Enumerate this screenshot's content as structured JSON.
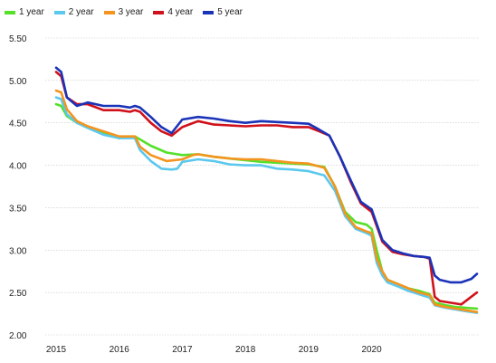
{
  "chart_data": {
    "type": "line",
    "title": "",
    "xlabel": "",
    "ylabel": "",
    "ylim": [
      2.0,
      5.5
    ],
    "yticks": [
      "2.00",
      "2.50",
      "3.00",
      "3.50",
      "4.00",
      "4.50",
      "5.00",
      "5.50"
    ],
    "xticks": [
      "2015",
      "2016",
      "2017",
      "2018",
      "2019",
      "2020"
    ],
    "grid": "horizontal",
    "legend_position": "top-left",
    "x_unit": "decimal year",
    "series": [
      {
        "name": "1 year",
        "color": "#55e02a",
        "x": [
          2015.0,
          2015.08,
          2015.17,
          2015.33,
          2015.5,
          2015.75,
          2016.0,
          2016.25,
          2016.5,
          2016.75,
          2017.0,
          2017.25,
          2017.5,
          2017.75,
          2018.0,
          2018.25,
          2018.5,
          2018.75,
          2019.0,
          2019.25,
          2019.42,
          2019.58,
          2019.75,
          2019.92,
          2020.0,
          2020.08,
          2020.17,
          2020.25,
          2020.42,
          2020.58,
          2020.75,
          2020.92,
          2021.0,
          2021.17,
          2021.33,
          2021.5,
          2021.67
        ],
        "values": [
          4.72,
          4.7,
          4.58,
          4.5,
          4.46,
          4.38,
          4.32,
          4.34,
          4.23,
          4.15,
          4.12,
          4.13,
          4.1,
          4.08,
          4.06,
          4.04,
          4.03,
          4.02,
          4.01,
          3.98,
          3.75,
          3.45,
          3.33,
          3.3,
          3.25,
          3.0,
          2.75,
          2.65,
          2.6,
          2.55,
          2.52,
          2.48,
          2.38,
          2.35,
          2.33,
          2.32,
          2.31
        ]
      },
      {
        "name": "2 year",
        "color": "#5bc8ee",
        "x": [
          2015.0,
          2015.08,
          2015.17,
          2015.33,
          2015.5,
          2015.75,
          2016.0,
          2016.25,
          2016.33,
          2016.5,
          2016.67,
          2016.83,
          2016.92,
          2017.0,
          2017.25,
          2017.5,
          2017.75,
          2018.0,
          2018.25,
          2018.5,
          2018.75,
          2019.0,
          2019.25,
          2019.42,
          2019.58,
          2019.75,
          2019.92,
          2020.0,
          2020.08,
          2020.17,
          2020.25,
          2020.42,
          2020.58,
          2020.75,
          2020.92,
          2021.0,
          2021.17,
          2021.33,
          2021.5,
          2021.67
        ],
        "values": [
          4.8,
          4.78,
          4.6,
          4.5,
          4.44,
          4.36,
          4.32,
          4.32,
          4.18,
          4.05,
          3.96,
          3.95,
          3.96,
          4.04,
          4.07,
          4.05,
          4.01,
          4.0,
          4.0,
          3.96,
          3.95,
          3.93,
          3.88,
          3.7,
          3.4,
          3.25,
          3.2,
          3.17,
          2.85,
          2.7,
          2.62,
          2.57,
          2.52,
          2.48,
          2.44,
          2.35,
          2.32,
          2.3,
          2.28,
          2.26
        ]
      },
      {
        "name": "3 year",
        "color": "#f4941f",
        "x": [
          2015.0,
          2015.08,
          2015.17,
          2015.33,
          2015.5,
          2015.75,
          2016.0,
          2016.25,
          2016.33,
          2016.5,
          2016.75,
          2017.0,
          2017.17,
          2017.25,
          2017.5,
          2017.75,
          2018.0,
          2018.25,
          2018.5,
          2018.75,
          2019.0,
          2019.25,
          2019.42,
          2019.58,
          2019.75,
          2019.92,
          2020.0,
          2020.08,
          2020.17,
          2020.25,
          2020.42,
          2020.58,
          2020.75,
          2020.92,
          2021.0,
          2021.17,
          2021.33,
          2021.5,
          2021.67
        ],
        "values": [
          4.88,
          4.86,
          4.66,
          4.52,
          4.46,
          4.4,
          4.34,
          4.34,
          4.22,
          4.12,
          4.05,
          4.07,
          4.12,
          4.13,
          4.1,
          4.08,
          4.07,
          4.07,
          4.05,
          4.03,
          4.02,
          3.97,
          3.75,
          3.43,
          3.27,
          3.22,
          3.2,
          2.9,
          2.75,
          2.65,
          2.6,
          2.55,
          2.5,
          2.47,
          2.36,
          2.33,
          2.31,
          2.29,
          2.27
        ]
      },
      {
        "name": "4 year",
        "color": "#d0111b",
        "x": [
          2015.0,
          2015.08,
          2015.17,
          2015.33,
          2015.5,
          2015.75,
          2016.0,
          2016.17,
          2016.25,
          2016.33,
          2016.5,
          2016.67,
          2016.83,
          2017.0,
          2017.25,
          2017.5,
          2017.75,
          2018.0,
          2018.25,
          2018.5,
          2018.75,
          2019.0,
          2019.17,
          2019.33,
          2019.5,
          2019.67,
          2019.83,
          2020.0,
          2020.17,
          2020.33,
          2020.5,
          2020.67,
          2020.83,
          2020.92,
          2021.0,
          2021.08,
          2021.25,
          2021.42,
          2021.58,
          2021.67
        ],
        "values": [
          5.1,
          5.05,
          4.8,
          4.72,
          4.72,
          4.65,
          4.65,
          4.63,
          4.65,
          4.63,
          4.5,
          4.4,
          4.35,
          4.45,
          4.52,
          4.48,
          4.47,
          4.46,
          4.47,
          4.47,
          4.45,
          4.45,
          4.4,
          4.35,
          4.1,
          3.8,
          3.55,
          3.45,
          3.1,
          2.98,
          2.95,
          2.93,
          2.92,
          2.9,
          2.45,
          2.4,
          2.38,
          2.36,
          2.45,
          2.5
        ]
      },
      {
        "name": "5 year",
        "color": "#1a33b8",
        "x": [
          2015.0,
          2015.08,
          2015.17,
          2015.33,
          2015.5,
          2015.75,
          2016.0,
          2016.17,
          2016.25,
          2016.33,
          2016.5,
          2016.67,
          2016.83,
          2017.0,
          2017.25,
          2017.5,
          2017.75,
          2018.0,
          2018.25,
          2018.5,
          2018.75,
          2019.0,
          2019.17,
          2019.33,
          2019.5,
          2019.67,
          2019.83,
          2020.0,
          2020.17,
          2020.33,
          2020.5,
          2020.67,
          2020.83,
          2020.92,
          2021.0,
          2021.08,
          2021.25,
          2021.42,
          2021.58,
          2021.67
        ],
        "values": [
          5.15,
          5.1,
          4.8,
          4.7,
          4.74,
          4.7,
          4.7,
          4.68,
          4.7,
          4.68,
          4.57,
          4.45,
          4.38,
          4.54,
          4.57,
          4.55,
          4.52,
          4.5,
          4.52,
          4.51,
          4.5,
          4.49,
          4.42,
          4.35,
          4.1,
          3.82,
          3.57,
          3.48,
          3.12,
          3.0,
          2.96,
          2.93,
          2.92,
          2.91,
          2.7,
          2.65,
          2.62,
          2.62,
          2.66,
          2.72
        ]
      }
    ]
  }
}
